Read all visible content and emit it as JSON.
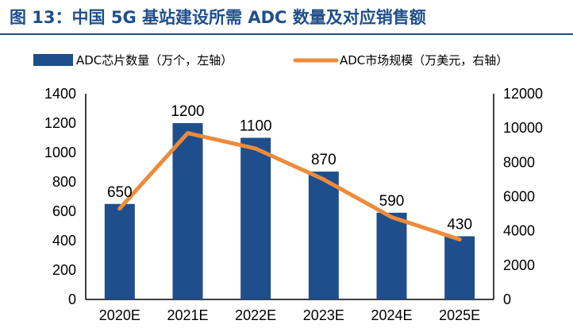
{
  "title": "图 13：中国 5G 基站建设所需 ADC 数量及对应销售额",
  "chart_data": {
    "type": "bar",
    "categories": [
      "2020E",
      "2021E",
      "2022E",
      "2023E",
      "2024E",
      "2025E"
    ],
    "series": [
      {
        "name": "ADC芯片数量（万个，左轴）",
        "type": "bar",
        "axis": "left",
        "color": "#1f4e8c",
        "values": [
          650,
          1200,
          1100,
          870,
          590,
          430
        ],
        "data_labels": [
          "650",
          "1200",
          "1100",
          "870",
          "590",
          "430"
        ]
      },
      {
        "name": "ADC市场规模（万美元，右轴）",
        "type": "line",
        "axis": "right",
        "color": "#ed8b3b",
        "values": [
          5300,
          9700,
          8800,
          7000,
          4800,
          3500
        ]
      }
    ],
    "y_left": {
      "range": [
        0,
        1400
      ],
      "ticks": [
        "0",
        "200",
        "400",
        "600",
        "800",
        "1000",
        "1200",
        "1400"
      ]
    },
    "y_right": {
      "range": [
        0,
        12000
      ],
      "ticks": [
        "0",
        "2000",
        "4000",
        "6000",
        "8000",
        "10000",
        "12000"
      ]
    },
    "grid": false,
    "legend": "top"
  }
}
